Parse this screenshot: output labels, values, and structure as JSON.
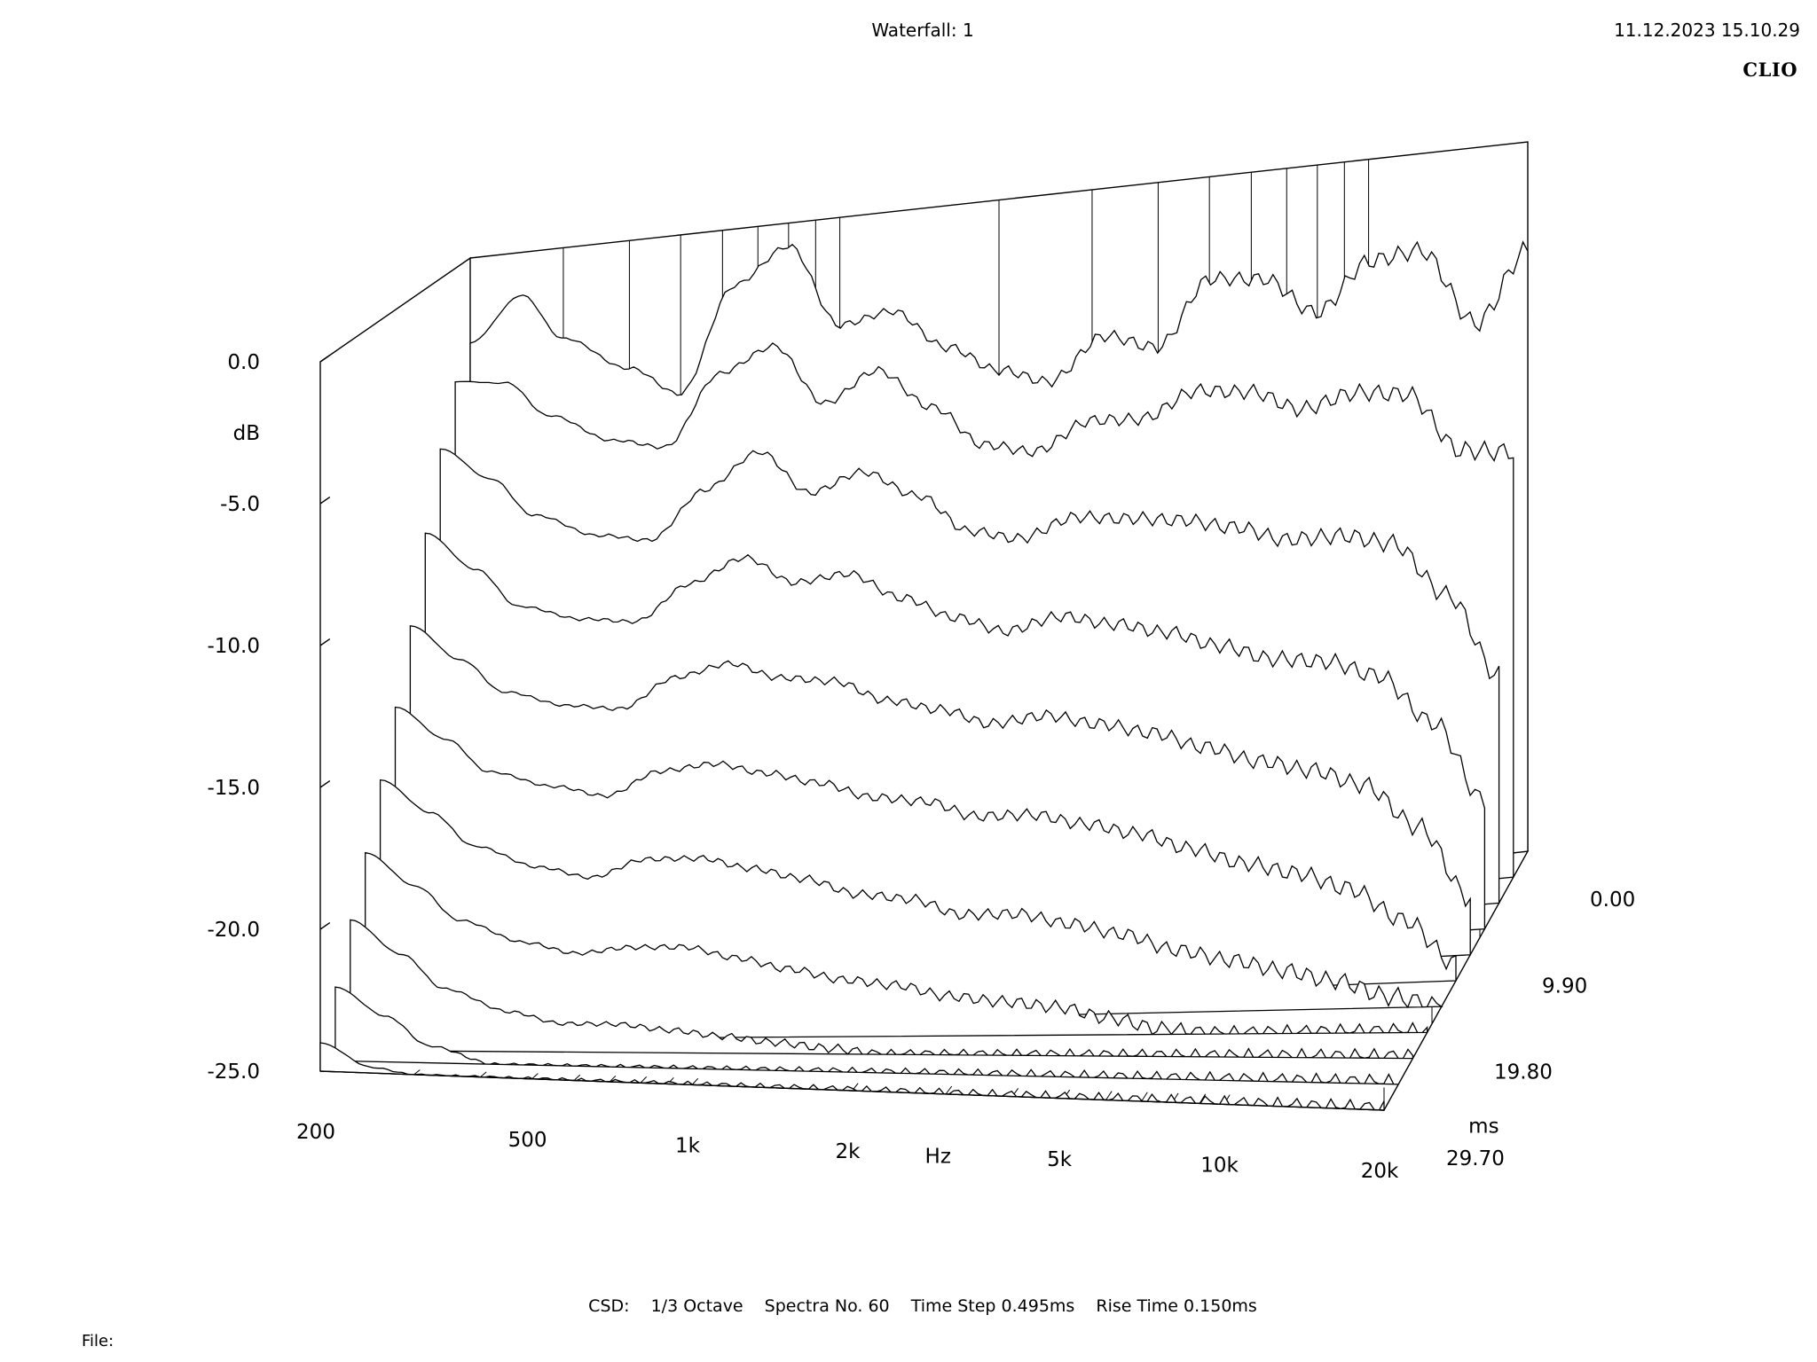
{
  "header": {
    "title": "Waterfall: 1",
    "timestamp": "11.12.2023 15.10.29",
    "brand": "CLIO"
  },
  "footer": {
    "mode": "CSD:",
    "smoothing": "1/3 Octave",
    "spectra": "Spectra No. 60",
    "time_step": "Time Step 0.495ms",
    "rise_time": "Rise Time 0.150ms",
    "file_label": "File:"
  },
  "chart_data": {
    "type": "waterfall",
    "title": "Waterfall: 1",
    "xlabel": "Hz",
    "ylabel": "dB",
    "zlabel": "ms",
    "x_scale": "log",
    "xlim": [
      200,
      20000
    ],
    "ylim": [
      -25,
      0
    ],
    "zlim": [
      0,
      29.7
    ],
    "x_ticks": [
      {
        "value": 200,
        "label": "200"
      },
      {
        "value": 500,
        "label": "500"
      },
      {
        "value": 1000,
        "label": "1k"
      },
      {
        "value": 2000,
        "label": "2k"
      },
      {
        "value": 5000,
        "label": "5k"
      },
      {
        "value": 10000,
        "label": "10k"
      },
      {
        "value": 20000,
        "label": "20k"
      }
    ],
    "y_ticks": [
      {
        "value": 0,
        "label": "0.0"
      },
      {
        "value": -5,
        "label": "-5.0"
      },
      {
        "value": -10,
        "label": "-10.0"
      },
      {
        "value": -15,
        "label": "-15.0"
      },
      {
        "value": -20,
        "label": "-20.0"
      },
      {
        "value": -25,
        "label": "-25.0"
      }
    ],
    "z_ticks": [
      {
        "value": 0,
        "label": "0.00"
      },
      {
        "value": 9.9,
        "label": "9.90"
      },
      {
        "value": 19.8,
        "label": "19.80"
      },
      {
        "value": 29.7,
        "label": "29.70"
      }
    ],
    "spectra_count": 60,
    "time_step_ms": 0.495,
    "line_color": "#000000",
    "background": "#ffffff",
    "frequency_points_hz": [
      200,
      250,
      300,
      400,
      500,
      630,
      800,
      1000,
      1250,
      1600,
      2000,
      2500,
      3150,
      4000,
      5000,
      6300,
      8000,
      10000,
      12500,
      16000,
      20000
    ],
    "spectra": [
      {
        "time_ms": 0.0,
        "db": [
          -3.0,
          -1.5,
          -3.2,
          -4.5,
          -5.6,
          -2.0,
          -0.8,
          -3.8,
          -3.5,
          -5.0,
          -6.0,
          -6.6,
          -5.2,
          -5.8,
          -3.6,
          -3.8,
          -5.2,
          -3.6,
          -3.4,
          -6.2,
          -3.8
        ]
      },
      {
        "time_ms": 2.97,
        "db": [
          -4.0,
          -4.2,
          -5.5,
          -6.6,
          -7.0,
          -4.6,
          -3.8,
          -6.0,
          -5.0,
          -6.5,
          -8.0,
          -8.4,
          -7.5,
          -7.6,
          -6.8,
          -7.0,
          -7.8,
          -7.4,
          -7.6,
          -9.8,
          -10.0
        ]
      },
      {
        "time_ms": 5.94,
        "db": [
          -6.0,
          -7.2,
          -8.6,
          -9.5,
          -9.8,
          -8.2,
          -7.0,
          -8.6,
          -8.0,
          -9.0,
          -10.4,
          -10.8,
          -10.2,
          -10.4,
          -10.6,
          -11.0,
          -11.6,
          -11.6,
          -12.0,
          -14.0,
          -17.0
        ]
      },
      {
        "time_ms": 8.91,
        "db": [
          -8.6,
          -10.0,
          -11.4,
          -12.0,
          -12.2,
          -11.0,
          -10.2,
          -11.2,
          -11.0,
          -12.0,
          -12.8,
          -13.4,
          -13.0,
          -13.4,
          -13.8,
          -14.4,
          -15.0,
          -15.2,
          -15.8,
          -17.6,
          -20.5
        ]
      },
      {
        "time_ms": 11.88,
        "db": [
          -11.5,
          -12.8,
          -14.0,
          -14.6,
          -14.8,
          -13.8,
          -13.4,
          -14.0,
          -14.2,
          -15.0,
          -15.4,
          -16.0,
          -15.8,
          -16.2,
          -16.6,
          -17.2,
          -17.8,
          -18.2,
          -18.8,
          -20.4,
          -23.0
        ]
      },
      {
        "time_ms": 14.85,
        "db": [
          -14.0,
          -15.2,
          -16.4,
          -17.0,
          -17.4,
          -16.6,
          -16.4,
          -16.8,
          -17.2,
          -17.8,
          -18.0,
          -18.6,
          -18.6,
          -19.0,
          -19.4,
          -20.0,
          -20.6,
          -21.0,
          -21.6,
          -22.8,
          -24.4
        ]
      },
      {
        "time_ms": 17.82,
        "db": [
          -16.2,
          -17.4,
          -18.6,
          -19.4,
          -19.8,
          -19.2,
          -19.2,
          -19.6,
          -20.0,
          -20.6,
          -20.8,
          -21.4,
          -21.4,
          -21.8,
          -22.2,
          -22.8,
          -23.2,
          -23.6,
          -24.0,
          -24.6,
          -25.0
        ]
      },
      {
        "time_ms": 20.79,
        "db": [
          -18.4,
          -19.6,
          -20.8,
          -21.6,
          -22.0,
          -21.8,
          -21.8,
          -22.2,
          -22.6,
          -23.0,
          -23.2,
          -23.6,
          -23.8,
          -24.0,
          -24.4,
          -24.8,
          -25.0,
          -25.0,
          -25.0,
          -25.0,
          -25.0
        ]
      },
      {
        "time_ms": 23.76,
        "db": [
          -20.4,
          -21.6,
          -22.8,
          -23.6,
          -24.0,
          -24.0,
          -24.2,
          -24.4,
          -24.6,
          -24.8,
          -25.0,
          -25.0,
          -25.0,
          -25.0,
          -25.0,
          -25.0,
          -25.0,
          -25.0,
          -25.0,
          -25.0,
          -25.0
        ]
      },
      {
        "time_ms": 26.73,
        "db": [
          -22.4,
          -23.4,
          -24.4,
          -25.0,
          -25.0,
          -25.0,
          -25.0,
          -25.0,
          -25.0,
          -25.0,
          -25.0,
          -25.0,
          -25.0,
          -25.0,
          -25.0,
          -25.0,
          -25.0,
          -25.0,
          -25.0,
          -25.0,
          -25.0
        ]
      },
      {
        "time_ms": 29.7,
        "db": [
          -24.0,
          -24.8,
          -25.0,
          -25.0,
          -25.0,
          -25.0,
          -25.0,
          -25.0,
          -25.0,
          -25.0,
          -25.0,
          -25.0,
          -25.0,
          -25.0,
          -25.0,
          -25.0,
          -25.0,
          -25.0,
          -25.0,
          -25.0,
          -25.0
        ]
      }
    ]
  }
}
